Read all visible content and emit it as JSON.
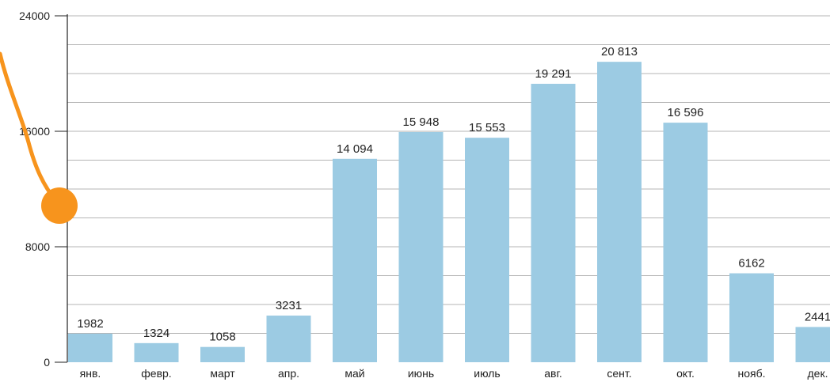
{
  "chart_data": {
    "type": "bar",
    "categories": [
      "янв.",
      "февр.",
      "март",
      "апр.",
      "май",
      "июнь",
      "июль",
      "авг.",
      "сент.",
      "окт.",
      "нояб.",
      "дек."
    ],
    "values": [
      1982,
      1324,
      1058,
      3231,
      14094,
      15948,
      15553,
      19291,
      20813,
      16596,
      6162,
      2441
    ],
    "value_labels": [
      "1982",
      "1324",
      "1058",
      "3231",
      "14 094",
      "15 948",
      "15 553",
      "19 291",
      "20 813",
      "16 596",
      "6162",
      "2441"
    ],
    "yticks": [
      0,
      8000,
      16000,
      24000
    ],
    "ytick_labels": [
      "0",
      "8000",
      "16000",
      "24000"
    ],
    "ylim": [
      0,
      24000
    ],
    "grid": true,
    "bar_color": "#9ccbe3",
    "grid_color": "#b5b5b5",
    "annotation_color": "#f7941d"
  }
}
